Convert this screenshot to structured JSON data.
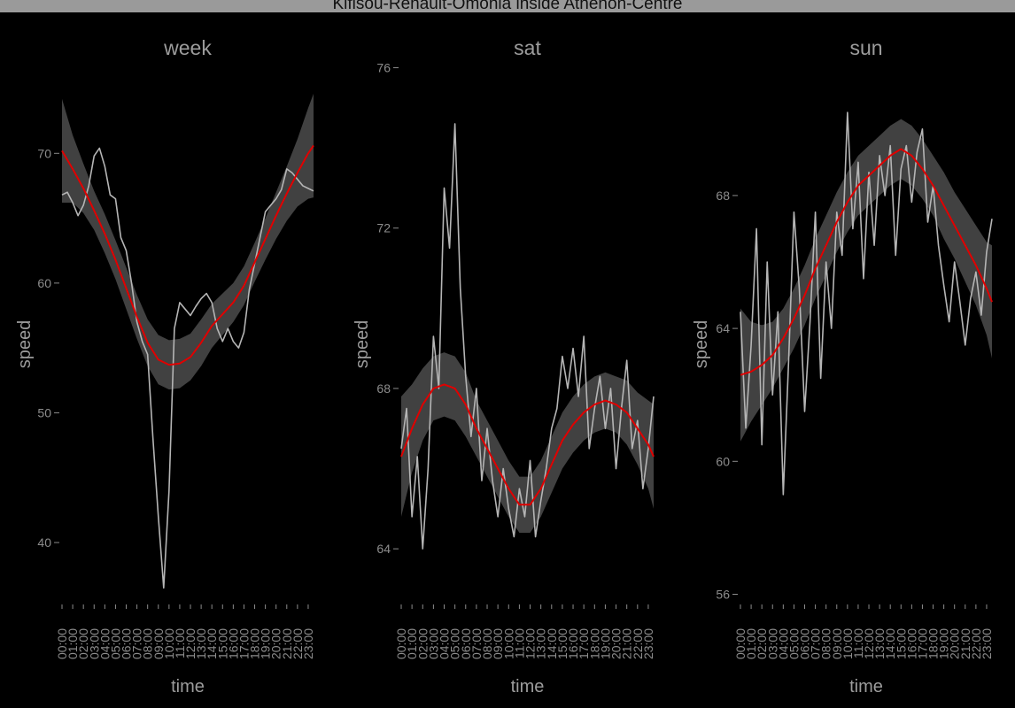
{
  "title": "Kifisou-Renault-Omonia inside Athenon-Centre",
  "colors": {
    "background": "#000000",
    "raw_line": "#b5b5b5",
    "smooth_line": "#e00000",
    "ribbon": "#444444",
    "title_bar": "#9a9a9a"
  },
  "chart_data": [
    {
      "type": "line",
      "title": "week",
      "xlabel": "time",
      "ylabel": "speed",
      "categories": [
        "00:00",
        "01:00",
        "02:00",
        "03:00",
        "04:00",
        "05:00",
        "06:00",
        "07:00",
        "08:00",
        "09:00",
        "10:00",
        "11:00",
        "12:00",
        "13:00",
        "14:00",
        "15:00",
        "16:00",
        "17:00",
        "18:00",
        "19:00",
        "20:00",
        "21:00",
        "22:00",
        "23:00"
      ],
      "yticks": [
        40,
        50,
        60,
        70
      ],
      "ylim": [
        35.5,
        75
      ],
      "grid": false,
      "series": [
        {
          "role": "raw",
          "x": [
            0,
            0.5,
            1,
            1.5,
            2,
            2.5,
            3,
            3.5,
            4,
            4.5,
            5,
            5.5,
            6,
            6.5,
            7,
            7.5,
            8,
            8.5,
            9,
            9.5,
            10,
            10.5,
            11,
            11.5,
            12,
            12.5,
            13,
            13.5,
            14,
            14.5,
            15,
            15.5,
            16,
            16.5,
            17,
            17.5,
            18,
            18.5,
            19,
            19.5,
            20,
            20.5,
            21,
            21.5,
            22,
            22.5,
            23,
            23.5
          ],
          "values": [
            66.8,
            67,
            66.2,
            65.2,
            66,
            67.5,
            69.8,
            70.4,
            69,
            66.8,
            66.5,
            63.5,
            62.5,
            60,
            57,
            55.5,
            54.5,
            48,
            42,
            36.5,
            44,
            56.5,
            58.5,
            58,
            57.5,
            58.2,
            58.8,
            59.2,
            58.5,
            56.5,
            55.5,
            56.5,
            55.5,
            55,
            56.2,
            59.5,
            61.5,
            63.5,
            65.5,
            66,
            66.5,
            67.2,
            68.8,
            68.5,
            68,
            67.5,
            67.3,
            67.1
          ]
        },
        {
          "role": "smooth",
          "x": [
            0,
            1,
            2,
            3,
            4,
            5,
            6,
            7,
            8,
            9,
            10,
            11,
            12,
            13,
            14,
            15,
            16,
            17,
            18,
            19,
            20,
            21,
            22,
            23,
            23.5
          ],
          "values": [
            70.2,
            68.8,
            67.3,
            65.6,
            63.8,
            61.8,
            59.6,
            57.4,
            55.4,
            54.1,
            53.7,
            53.8,
            54.3,
            55.4,
            56.7,
            57.6,
            58.5,
            59.8,
            61.6,
            63.4,
            65.2,
            66.9,
            68.5,
            70,
            70.6
          ],
          "band": [
            4,
            2.6,
            1.9,
            1.5,
            1.5,
            1.5,
            1.6,
            1.7,
            1.8,
            1.9,
            1.9,
            1.9,
            1.8,
            1.8,
            1.7,
            1.6,
            1.5,
            1.5,
            1.5,
            1.6,
            1.8,
            2.1,
            2.6,
            3.5,
            4
          ]
        }
      ]
    },
    {
      "type": "line",
      "title": "sat",
      "xlabel": "time",
      "ylabel": "speed",
      "categories": [
        "00:00",
        "01:00",
        "02:00",
        "03:00",
        "04:00",
        "05:00",
        "06:00",
        "07:00",
        "08:00",
        "09:00",
        "10:00",
        "11:00",
        "12:00",
        "13:00",
        "14:00",
        "15:00",
        "16:00",
        "17:00",
        "18:00",
        "19:00",
        "20:00",
        "21:00",
        "22:00",
        "23:00"
      ],
      "yticks": [
        64,
        68,
        72,
        76
      ],
      "ylim": [
        62.7,
        76.1
      ],
      "grid": false,
      "series": [
        {
          "role": "raw",
          "x": [
            0,
            0.5,
            1,
            1.5,
            2,
            2.5,
            3,
            3.5,
            4,
            4.5,
            5,
            5.5,
            6,
            6.5,
            7,
            7.5,
            8,
            8.5,
            9,
            9.5,
            10,
            10.5,
            11,
            11.5,
            12,
            12.5,
            13,
            13.5,
            14,
            14.5,
            15,
            15.5,
            16,
            16.5,
            17,
            17.5,
            18,
            18.5,
            19,
            19.5,
            20,
            20.5,
            21,
            21.5,
            22,
            22.5,
            23,
            23.5
          ],
          "values": [
            66.5,
            67.5,
            64.8,
            66.3,
            64,
            66,
            69.3,
            68,
            73,
            71.5,
            74.6,
            70.5,
            68.3,
            66.8,
            68,
            65.7,
            67,
            65.7,
            64.8,
            66,
            65,
            64.3,
            65.5,
            64.8,
            66.2,
            64.3,
            65.2,
            66,
            67,
            67.5,
            68.8,
            68,
            69,
            67.8,
            69.3,
            66.5,
            67.5,
            68.3,
            67,
            68,
            66,
            67.5,
            68.7,
            66.5,
            67.2,
            65.5,
            66.5,
            67.8
          ]
        },
        {
          "role": "smooth",
          "x": [
            0,
            1,
            2,
            3,
            4,
            5,
            6,
            7,
            8,
            9,
            10,
            11,
            12,
            13,
            14,
            15,
            16,
            17,
            18,
            19,
            20,
            21,
            22,
            23,
            23.5
          ],
          "values": [
            66.3,
            67,
            67.6,
            68,
            68.1,
            68,
            67.6,
            67,
            66.5,
            66,
            65.5,
            65.1,
            65.1,
            65.5,
            66.1,
            66.7,
            67.1,
            67.4,
            67.6,
            67.7,
            67.6,
            67.4,
            67,
            66.6,
            66.3
          ],
          "band": [
            1.5,
            1.1,
            0.9,
            0.8,
            0.8,
            0.8,
            0.8,
            0.7,
            0.7,
            0.7,
            0.7,
            0.7,
            0.7,
            0.7,
            0.7,
            0.7,
            0.7,
            0.7,
            0.7,
            0.7,
            0.7,
            0.8,
            0.9,
            1.1,
            1.3
          ]
        }
      ]
    },
    {
      "type": "line",
      "title": "sun",
      "xlabel": "time",
      "ylabel": "speed",
      "categories": [
        "00:00",
        "01:00",
        "02:00",
        "03:00",
        "04:00",
        "05:00",
        "06:00",
        "07:00",
        "08:00",
        "09:00",
        "10:00",
        "11:00",
        "12:00",
        "13:00",
        "14:00",
        "15:00",
        "16:00",
        "17:00",
        "18:00",
        "19:00",
        "20:00",
        "21:00",
        "22:00",
        "23:00"
      ],
      "yticks": [
        56,
        60,
        64,
        68
      ],
      "ylim": [
        55.8,
        71.3
      ],
      "grid": false,
      "series": [
        {
          "role": "raw",
          "x": [
            0,
            0.5,
            1,
            1.5,
            2,
            2.5,
            3,
            3.5,
            4,
            4.5,
            5,
            5.5,
            6,
            6.5,
            7,
            7.5,
            8,
            8.5,
            9,
            9.5,
            10,
            10.5,
            11,
            11.5,
            12,
            12.5,
            13,
            13.5,
            14,
            14.5,
            15,
            15.5,
            16,
            16.5,
            17,
            17.5,
            18,
            18.5,
            19,
            19.5,
            20,
            20.5,
            21,
            21.5,
            22,
            22.5,
            23,
            23.5
          ],
          "values": [
            64.5,
            61,
            63.5,
            67,
            60.5,
            66,
            62,
            64.5,
            59,
            63,
            67.5,
            65.2,
            61.5,
            64.2,
            67.5,
            62.5,
            66,
            64,
            67.5,
            66.2,
            70.5,
            67,
            69,
            65.5,
            68.7,
            66.5,
            69.2,
            68,
            69.5,
            66.2,
            68.8,
            69.5,
            67.8,
            69.3,
            70,
            67.2,
            68.3,
            66.5,
            65.3,
            64.2,
            66,
            64.8,
            63.5,
            64.9,
            65.7,
            64.4,
            66.3,
            67.3
          ]
        },
        {
          "role": "smooth",
          "x": [
            0,
            1,
            2,
            3,
            4,
            5,
            6,
            7,
            8,
            9,
            10,
            11,
            12,
            13,
            14,
            15,
            16,
            17,
            18,
            19,
            20,
            21,
            22,
            23,
            23.5
          ],
          "values": [
            62.6,
            62.7,
            62.9,
            63.2,
            63.7,
            64.3,
            65,
            65.8,
            66.5,
            67.2,
            67.8,
            68.3,
            68.6,
            68.9,
            69.2,
            69.4,
            69.2,
            68.8,
            68.3,
            67.7,
            67.1,
            66.5,
            65.9,
            65.2,
            64.8
          ],
          "band": [
            2,
            1.5,
            1.2,
            1,
            0.9,
            0.9,
            0.9,
            0.9,
            0.9,
            0.9,
            0.9,
            0.9,
            0.9,
            0.9,
            0.9,
            0.9,
            0.9,
            0.9,
            0.9,
            1,
            1,
            1.1,
            1.2,
            1.4,
            1.7
          ]
        }
      ]
    }
  ]
}
